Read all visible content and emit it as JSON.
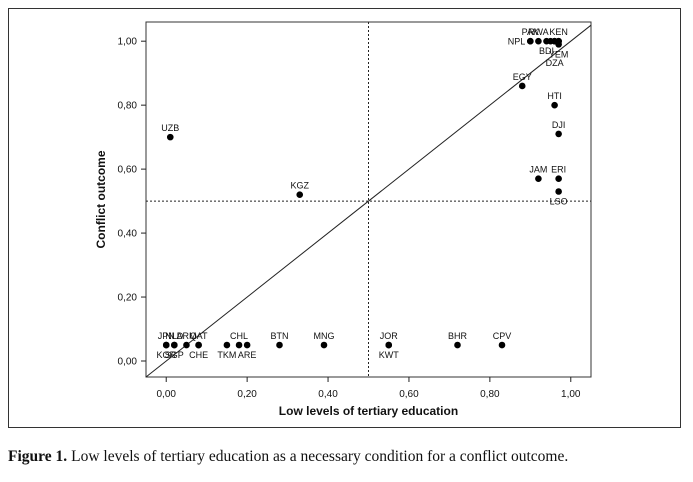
{
  "chart_data": {
    "type": "scatter",
    "xlabel": "Low levels of tertiary education",
    "ylabel": "Conflict outcome",
    "xlim": [
      -0.05,
      1.05
    ],
    "ylim": [
      -0.05,
      1.06
    ],
    "x_ticks": [
      "0,00",
      "0,20",
      "0,40",
      "0,60",
      "0,80",
      "1,00"
    ],
    "y_ticks": [
      "0,00",
      "0,20",
      "0,40",
      "0,60",
      "0,80",
      "1,00"
    ],
    "tick_values": [
      0,
      0.2,
      0.4,
      0.6,
      0.8,
      1.0
    ],
    "threshold_lines": {
      "x": 0.5,
      "y": 0.5,
      "style": "dotted"
    },
    "diagonal": {
      "from": [
        -0.05,
        -0.05
      ],
      "to": [
        1.05,
        1.05
      ]
    },
    "grid": false,
    "points": [
      {
        "label": "JPN",
        "x": 0.0,
        "y": 0.05,
        "label_pos": "above"
      },
      {
        "label": "KOR",
        "x": 0.0,
        "y": 0.05,
        "label_pos": "below"
      },
      {
        "label": "NLD",
        "x": 0.02,
        "y": 0.05,
        "label_pos": "above"
      },
      {
        "label": "SGP",
        "x": 0.02,
        "y": 0.05,
        "label_pos": "below"
      },
      {
        "label": "ARM",
        "x": 0.05,
        "y": 0.05,
        "label_pos": "above"
      },
      {
        "label": "QAT",
        "x": 0.08,
        "y": 0.05,
        "label_pos": "above"
      },
      {
        "label": "CHE",
        "x": 0.08,
        "y": 0.05,
        "label_pos": "below"
      },
      {
        "label": "TKM",
        "x": 0.15,
        "y": 0.05,
        "label_pos": "below"
      },
      {
        "label": "CHL",
        "x": 0.18,
        "y": 0.05,
        "label_pos": "above"
      },
      {
        "label": "ARE",
        "x": 0.2,
        "y": 0.05,
        "label_pos": "below"
      },
      {
        "label": "BTN",
        "x": 0.28,
        "y": 0.05,
        "label_pos": "above"
      },
      {
        "label": "MNG",
        "x": 0.39,
        "y": 0.05,
        "label_pos": "above"
      },
      {
        "label": "JOR",
        "x": 0.55,
        "y": 0.05,
        "label_pos": "above"
      },
      {
        "label": "KWT",
        "x": 0.55,
        "y": 0.05,
        "label_pos": "below"
      },
      {
        "label": "BHR",
        "x": 0.72,
        "y": 0.05,
        "label_pos": "above"
      },
      {
        "label": "CPV",
        "x": 0.83,
        "y": 0.05,
        "label_pos": "above"
      },
      {
        "label": "UZB",
        "x": 0.01,
        "y": 0.7,
        "label_pos": "above"
      },
      {
        "label": "KGZ",
        "x": 0.33,
        "y": 0.52,
        "label_pos": "above"
      },
      {
        "label": "EGY",
        "x": 0.88,
        "y": 0.86,
        "label_pos": "above"
      },
      {
        "label": "HTI",
        "x": 0.96,
        "y": 0.8,
        "label_pos": "above"
      },
      {
        "label": "DJI",
        "x": 0.97,
        "y": 0.71,
        "label_pos": "above"
      },
      {
        "label": "JAM",
        "x": 0.92,
        "y": 0.57,
        "label_pos": "above"
      },
      {
        "label": "ERI",
        "x": 0.97,
        "y": 0.57,
        "label_pos": "above"
      },
      {
        "label": "LSO",
        "x": 0.97,
        "y": 0.53,
        "label_pos": "below"
      },
      {
        "label": "PAK",
        "x": 0.9,
        "y": 1.0,
        "label_pos": "above"
      },
      {
        "label": "NPL",
        "x": 0.9,
        "y": 1.0,
        "label_pos": "left"
      },
      {
        "label": "RWA",
        "x": 0.92,
        "y": 1.0,
        "label_pos": "above"
      },
      {
        "label": "BDI",
        "x": 0.94,
        "y": 1.0,
        "label_pos": "below"
      },
      {
        "label": "KEN",
        "x": 0.97,
        "y": 1.0,
        "label_pos": "above"
      },
      {
        "label": "YEM",
        "x": 0.97,
        "y": 0.99,
        "label_pos": "below"
      },
      {
        "label": "DZA",
        "x": 0.96,
        "y": 1.0,
        "label_pos": "below2"
      },
      {
        "label": "",
        "x": 0.95,
        "y": 1.0,
        "label_pos": "none"
      },
      {
        "label": "",
        "x": 0.96,
        "y": 1.0,
        "label_pos": "none"
      },
      {
        "label": "",
        "x": 0.97,
        "y": 1.0,
        "label_pos": "none"
      }
    ]
  },
  "caption": {
    "label": "Figure 1.",
    "text": "Low levels of tertiary education as a necessary condition for a conflict outcome."
  }
}
